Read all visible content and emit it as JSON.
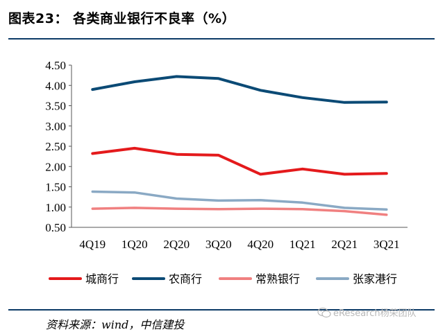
{
  "header": {
    "title": "图表23：  各类商业银行不良率（%）"
  },
  "footer": {
    "source": "资料来源：wind，中信建投",
    "watermark": "eResearch杨荣团队"
  },
  "chart_data": {
    "type": "line",
    "categories": [
      "4Q19",
      "1Q20",
      "2Q20",
      "3Q20",
      "4Q20",
      "1Q21",
      "2Q21",
      "3Q21"
    ],
    "ylim": [
      0.5,
      4.5
    ],
    "yticks": [
      "4.50",
      "4.00",
      "3.50",
      "3.00",
      "2.50",
      "2.00",
      "1.50",
      "1.00",
      "0.50"
    ],
    "ytick_values": [
      4.5,
      4.0,
      3.5,
      3.0,
      2.5,
      2.0,
      1.5,
      1.0,
      0.5
    ],
    "grid": false,
    "legend_position": "bottom",
    "series": [
      {
        "name": "城商行",
        "color": "#e41a1c",
        "values": [
          2.32,
          2.45,
          2.3,
          2.28,
          1.81,
          1.94,
          1.81,
          1.83
        ]
      },
      {
        "name": "农商行",
        "color": "#0b4a75",
        "values": [
          3.9,
          4.09,
          4.22,
          4.17,
          3.88,
          3.7,
          3.58,
          3.59
        ]
      },
      {
        "name": "常熟银行",
        "color": "#f08080",
        "values": [
          0.96,
          0.98,
          0.96,
          0.95,
          0.96,
          0.95,
          0.9,
          0.81
        ]
      },
      {
        "name": "张家港行",
        "color": "#8aa9c4",
        "values": [
          1.38,
          1.36,
          1.21,
          1.16,
          1.17,
          1.11,
          0.98,
          0.94
        ]
      }
    ]
  }
}
